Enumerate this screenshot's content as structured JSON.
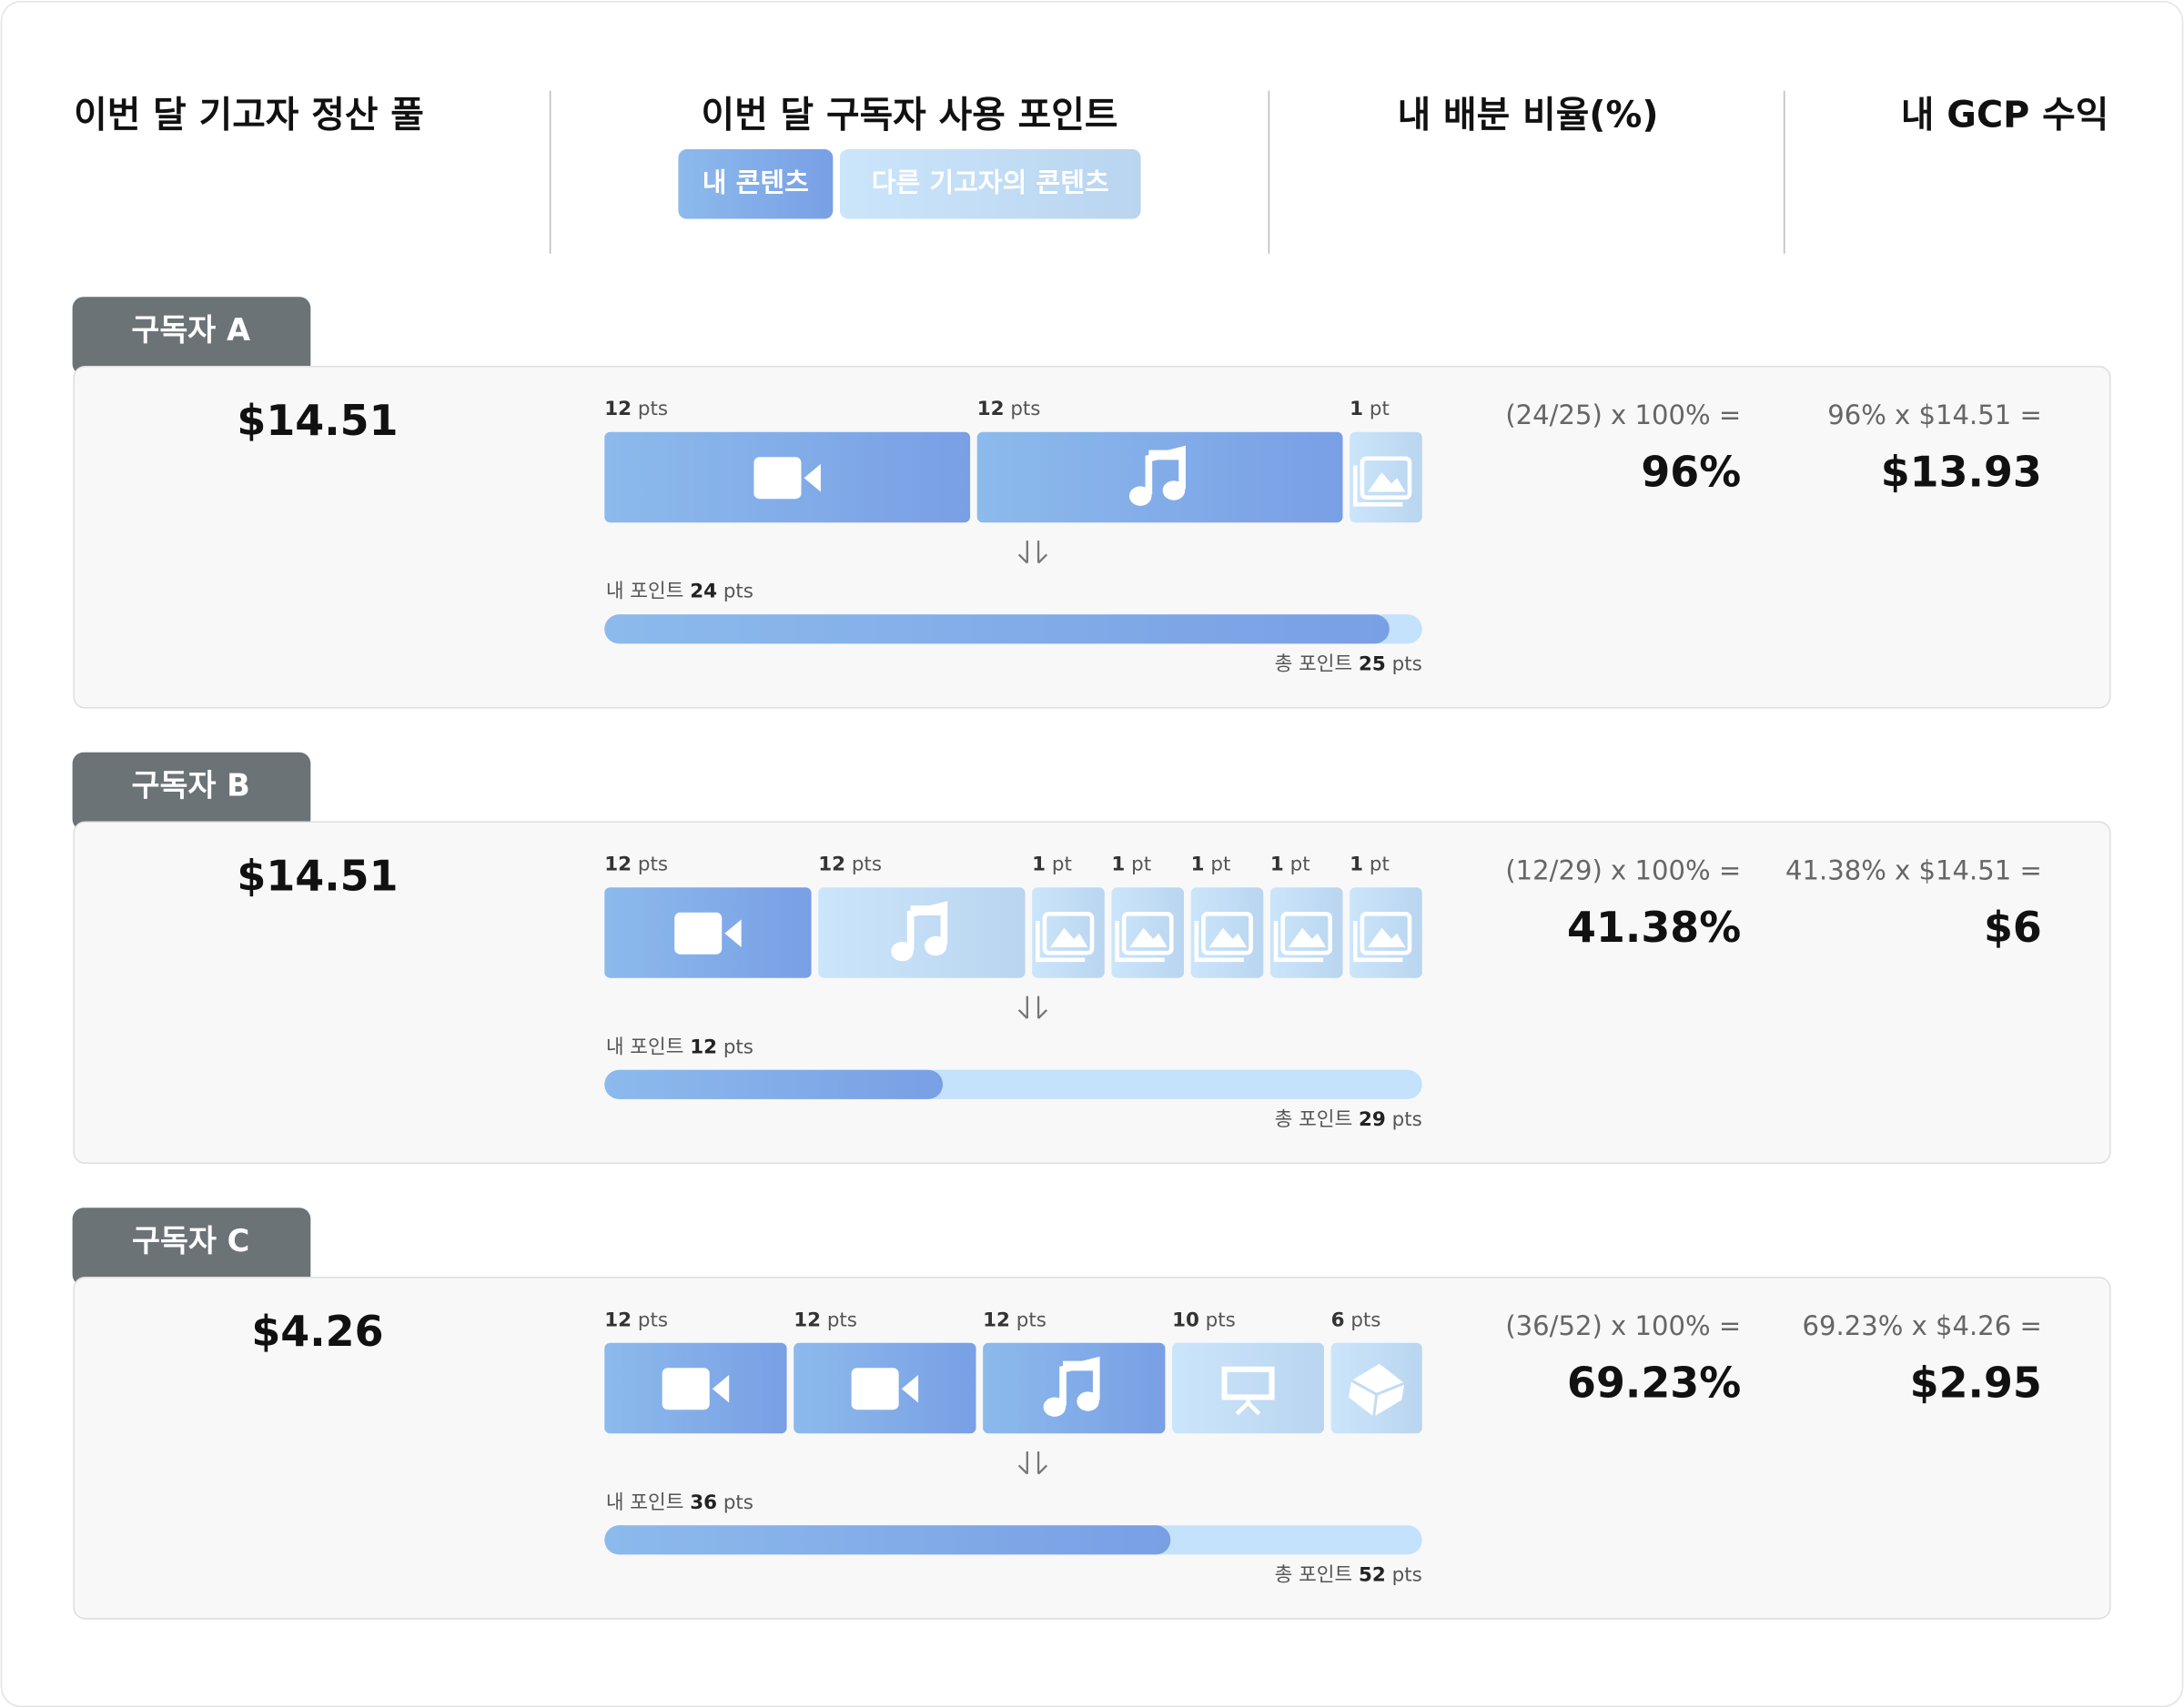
{
  "header": {
    "columns": [
      "이번 달 기고자 정산 풀",
      "이번 달 구독자 사용 포인트",
      "내 배분 비율(%)",
      "내 GCP 수익"
    ],
    "legend": {
      "mine": "내 콘텐츠",
      "others": "다른 기고자의 콘텐츠"
    }
  },
  "subscribers": [
    {
      "name": "구독자 A",
      "pool": "$14.51",
      "items": [
        {
          "points": 12,
          "unit": "pts",
          "owner": "mine",
          "icon": "video"
        },
        {
          "points": 12,
          "unit": "pts",
          "owner": "mine",
          "icon": "music"
        },
        {
          "points": 1,
          "unit": "pt",
          "owner": "other",
          "icon": "image"
        }
      ],
      "my_points": {
        "label": "내 포인트",
        "value": 24,
        "unit": "pts"
      },
      "total_points": {
        "label": "총 포인트",
        "value": 25,
        "unit": "pts"
      },
      "ratio_formula": "(24/25) x 100% =",
      "ratio": "96%",
      "earnings_formula": "96% x $14.51 =",
      "earnings": "$13.93"
    },
    {
      "name": "구독자 B",
      "pool": "$14.51",
      "items": [
        {
          "points": 12,
          "unit": "pts",
          "owner": "mine",
          "icon": "video"
        },
        {
          "points": 12,
          "unit": "pts",
          "owner": "other",
          "icon": "music"
        },
        {
          "points": 1,
          "unit": "pt",
          "owner": "other",
          "icon": "image"
        },
        {
          "points": 1,
          "unit": "pt",
          "owner": "other",
          "icon": "image"
        },
        {
          "points": 1,
          "unit": "pt",
          "owner": "other",
          "icon": "image"
        },
        {
          "points": 1,
          "unit": "pt",
          "owner": "other",
          "icon": "image"
        },
        {
          "points": 1,
          "unit": "pt",
          "owner": "other",
          "icon": "image"
        }
      ],
      "my_points": {
        "label": "내 포인트",
        "value": 12,
        "unit": "pts"
      },
      "total_points": {
        "label": "총 포인트",
        "value": 29,
        "unit": "pts"
      },
      "ratio_formula": "(12/29) x 100% =",
      "ratio": "41.38%",
      "earnings_formula": "41.38% x $14.51 =",
      "earnings": "$6"
    },
    {
      "name": "구독자 C",
      "pool": "$4.26",
      "items": [
        {
          "points": 12,
          "unit": "pts",
          "owner": "mine",
          "icon": "video"
        },
        {
          "points": 12,
          "unit": "pts",
          "owner": "mine",
          "icon": "video"
        },
        {
          "points": 12,
          "unit": "pts",
          "owner": "mine",
          "icon": "music"
        },
        {
          "points": 10,
          "unit": "pts",
          "owner": "other",
          "icon": "presentation"
        },
        {
          "points": 6,
          "unit": "pts",
          "owner": "other",
          "icon": "cube"
        }
      ],
      "my_points": {
        "label": "내 포인트",
        "value": 36,
        "unit": "pts"
      },
      "total_points": {
        "label": "총 포인트",
        "value": 52,
        "unit": "pts"
      },
      "ratio_formula": "(36/52) x 100% =",
      "ratio": "69.23%",
      "earnings_formula": "69.23% x $4.26 =",
      "earnings": "$2.95"
    }
  ]
}
